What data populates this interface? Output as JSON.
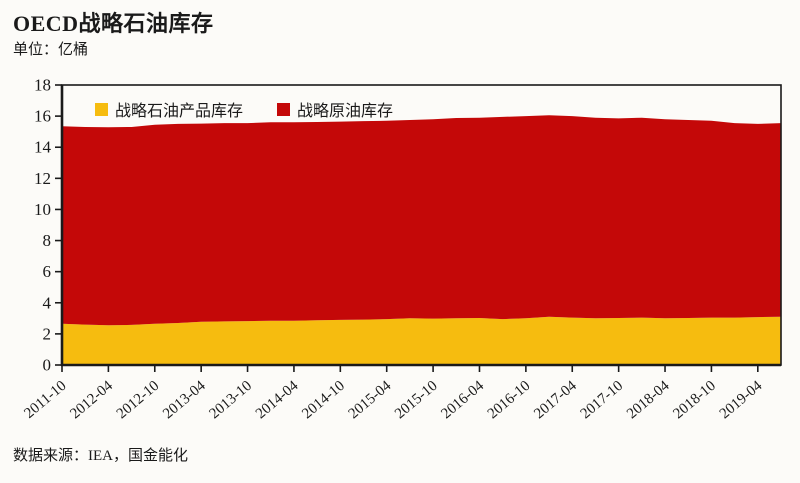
{
  "header": {
    "title": "OECD战略石油库存",
    "unit_label": "单位：亿桶"
  },
  "footer": {
    "source": "数据来源：IEA，国金能化"
  },
  "colors": {
    "product": "#f6bc0f",
    "crude": "#c40808",
    "axis": "#1a1a1a",
    "background": "#fcfbf8"
  },
  "chart_data": {
    "type": "area",
    "stacked": true,
    "title": "OECD战略石油库存",
    "ylabel": "亿桶",
    "ylim": [
      0,
      18
    ],
    "y_ticks": [
      0,
      2,
      4,
      6,
      8,
      10,
      12,
      14,
      16,
      18
    ],
    "grid": false,
    "legend_position": "top-left-inside",
    "x": [
      "2011-10",
      "2012-01",
      "2012-04",
      "2012-07",
      "2012-10",
      "2013-01",
      "2013-04",
      "2013-07",
      "2013-10",
      "2014-01",
      "2014-04",
      "2014-07",
      "2014-10",
      "2015-01",
      "2015-04",
      "2015-07",
      "2015-10",
      "2016-01",
      "2016-04",
      "2016-07",
      "2016-10",
      "2017-01",
      "2017-04",
      "2017-07",
      "2017-10",
      "2018-01",
      "2018-04",
      "2018-07",
      "2018-10",
      "2019-01",
      "2019-04",
      "2019-07"
    ],
    "x_tick_labels": [
      "2011-10",
      "2012-04",
      "2012-10",
      "2013-04",
      "2013-10",
      "2014-04",
      "2014-10",
      "2015-04",
      "2015-10",
      "2016-04",
      "2016-10",
      "2017-04",
      "2017-10",
      "2018-04",
      "2018-10",
      "2019-04"
    ],
    "series": [
      {
        "name": "战略石油产品库存",
        "color": "#f6bc0f",
        "values": [
          2.65,
          2.6,
          2.55,
          2.58,
          2.65,
          2.7,
          2.78,
          2.8,
          2.82,
          2.85,
          2.85,
          2.88,
          2.9,
          2.92,
          2.95,
          3.0,
          2.98,
          3.0,
          3.02,
          2.95,
          3.0,
          3.1,
          3.05,
          3.0,
          3.02,
          3.05,
          3.0,
          3.02,
          3.05,
          3.05,
          3.08,
          3.1
        ]
      },
      {
        "name": "战略原油库存",
        "color": "#c40808",
        "values": [
          12.7,
          12.7,
          12.73,
          12.72,
          12.8,
          12.8,
          12.74,
          12.75,
          12.73,
          12.75,
          12.75,
          12.74,
          12.75,
          12.76,
          12.75,
          12.75,
          12.82,
          12.88,
          12.88,
          13.0,
          13.0,
          12.95,
          12.95,
          12.9,
          12.83,
          12.85,
          12.8,
          12.73,
          12.65,
          12.5,
          12.42,
          12.45
        ]
      }
    ]
  }
}
